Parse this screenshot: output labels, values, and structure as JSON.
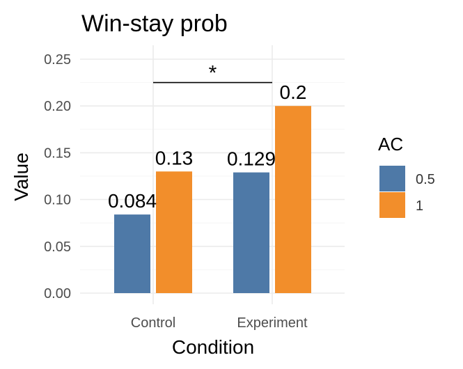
{
  "chart_data": {
    "type": "bar",
    "title": "Win-stay prob",
    "xlabel": "Condition",
    "ylabel": "Value",
    "categories": [
      "Control",
      "Experiment"
    ],
    "ylim": [
      0,
      0.25
    ],
    "yticks": [
      "0.00",
      "0.05",
      "0.10",
      "0.15",
      "0.20",
      "0.25"
    ],
    "grid": true,
    "legend": {
      "title": "AC",
      "position": "right"
    },
    "series": [
      {
        "name": "0.5",
        "color": "#4e79a7",
        "values": [
          0.084,
          0.129
        ],
        "labels": [
          "0.084",
          "0.129"
        ]
      },
      {
        "name": "1",
        "color": "#f28e2b",
        "values": [
          0.13,
          0.2
        ],
        "labels": [
          "0.13",
          "0.2"
        ]
      }
    ],
    "annotations": [
      {
        "text": "*",
        "from": "Control",
        "to": "Experiment",
        "y": 0.225
      }
    ]
  }
}
